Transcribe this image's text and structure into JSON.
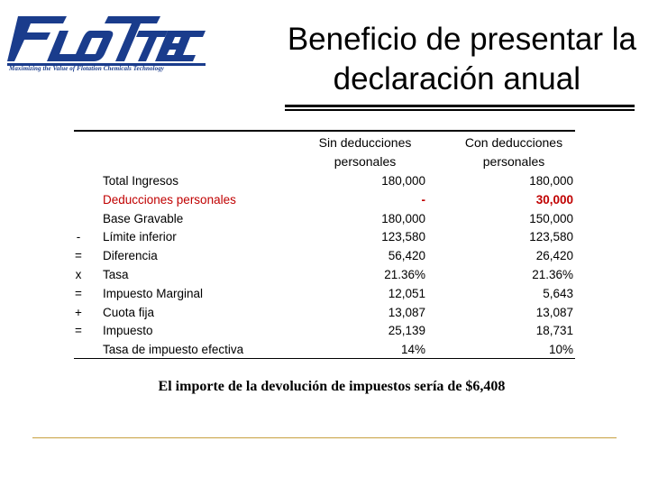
{
  "logo": {
    "text": "FLOTTEC",
    "tagline": "Maximizing the Value of Flotation Chemicals Technology",
    "color": "#1a3c8c"
  },
  "title": {
    "line1": "Beneficio de presentar la",
    "line2": "declaración anual"
  },
  "table": {
    "col_sin": "Sin deducciones personales",
    "col_con": "Con deducciones personales",
    "rows": [
      {
        "op": "",
        "label": "Total Ingresos",
        "sin": "180,000",
        "con": "180,000"
      },
      {
        "op": "",
        "label": "Deducciones personales",
        "sin": "-",
        "con": "30,000"
      },
      {
        "op": "",
        "label": "Base Gravable",
        "sin": "180,000",
        "con": "150,000"
      },
      {
        "op": "-",
        "label": "Límite inferior",
        "sin": "123,580",
        "con": "123,580"
      },
      {
        "op": "=",
        "label": "Diferencia",
        "sin": "56,420",
        "con": "26,420"
      },
      {
        "op": "x",
        "label": "Tasa",
        "sin": "21.36%",
        "con": "21.36%"
      },
      {
        "op": "=",
        "label": "Impuesto Marginal",
        "sin": "12,051",
        "con": "5,643"
      },
      {
        "op": "+",
        "label": "Cuota fija",
        "sin": "13,087",
        "con": "13,087"
      },
      {
        "op": "=",
        "label": "Impuesto",
        "sin": "25,139",
        "con": "18,731"
      },
      {
        "op": "",
        "label": "Tasa de impuesto efectiva",
        "sin": "14%",
        "con": "10%"
      }
    ]
  },
  "note": "El importe de la devolución de impuestos sería de $6,408",
  "colors": {
    "highlight": "#c00000",
    "footer_rule": "#c8a040"
  }
}
